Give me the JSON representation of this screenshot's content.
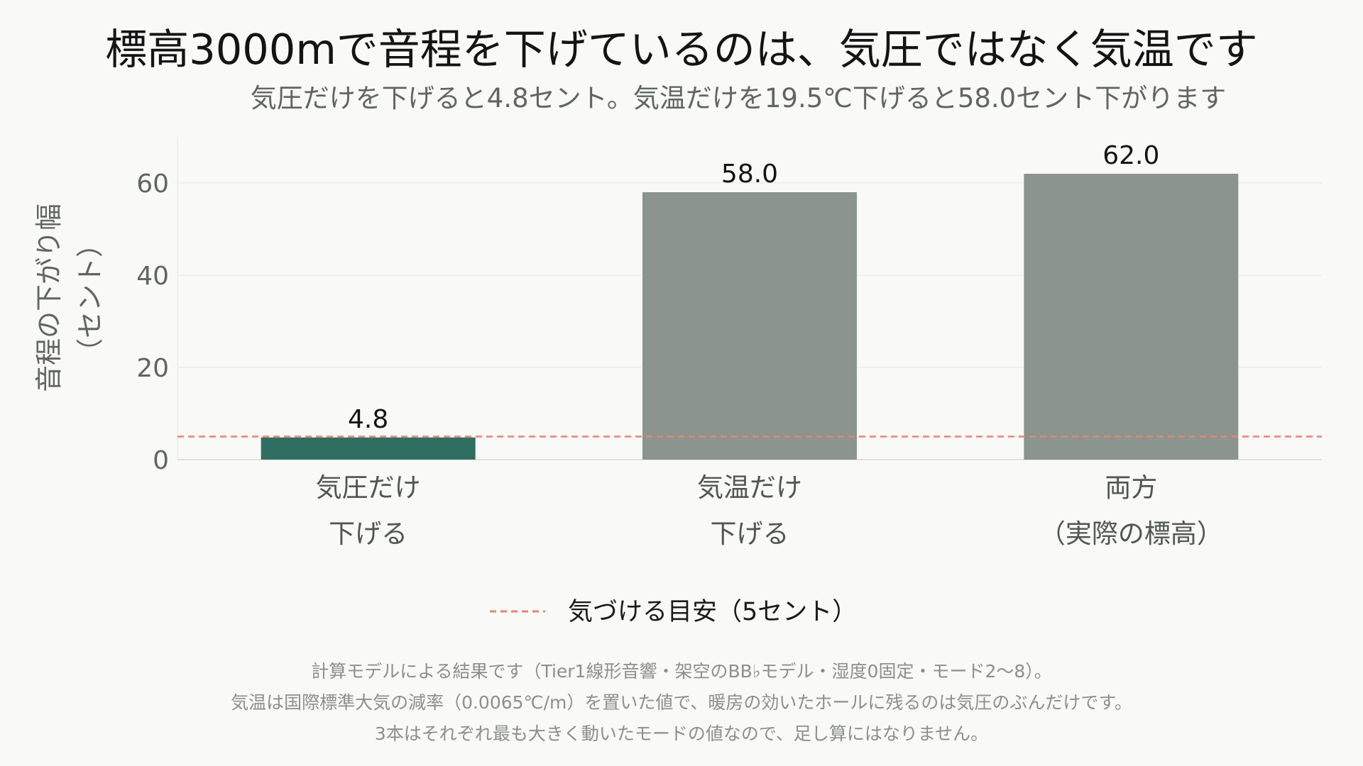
{
  "title": "標高3000mで音程を下げているのは、気圧ではなく気温です",
  "subtitle": "気圧だけを下げると4.8セント。気温だけを19.5℃下げると58.0セント下がります",
  "chart_data": {
    "type": "bar",
    "categories": [
      [
        "気圧だけ",
        "下げる"
      ],
      [
        "気温だけ",
        "下げる"
      ],
      [
        "両方",
        "（実際の標高）"
      ]
    ],
    "values": [
      4.8,
      58.0,
      62.0
    ],
    "value_labels": [
      "4.8",
      "58.0",
      "62.0"
    ],
    "bar_colors": [
      "#2e6f61",
      "#8b948f",
      "#8b948f"
    ],
    "ylabel": [
      "音程の下がり幅",
      "（セント）"
    ],
    "ylim": [
      0,
      70
    ],
    "yticks": [
      0,
      20,
      40,
      60
    ],
    "grid": true,
    "reference_line": {
      "value": 5,
      "label": "気づける目安（5セント）",
      "color": "#e8846f"
    },
    "legend_position": "bottom"
  },
  "notes": [
    "計算モデルによる結果です（Tier1線形音響・架空のBB♭モデル・湿度0固定・モード2〜8）。",
    "気温は国際標準大気の減率（0.0065℃/m）を置いた値で、暖房の効いたホールに残るのは気圧のぶんだけです。",
    "3本はそれぞれ最も大きく動いたモードの値なので、足し算にはなりません。"
  ]
}
